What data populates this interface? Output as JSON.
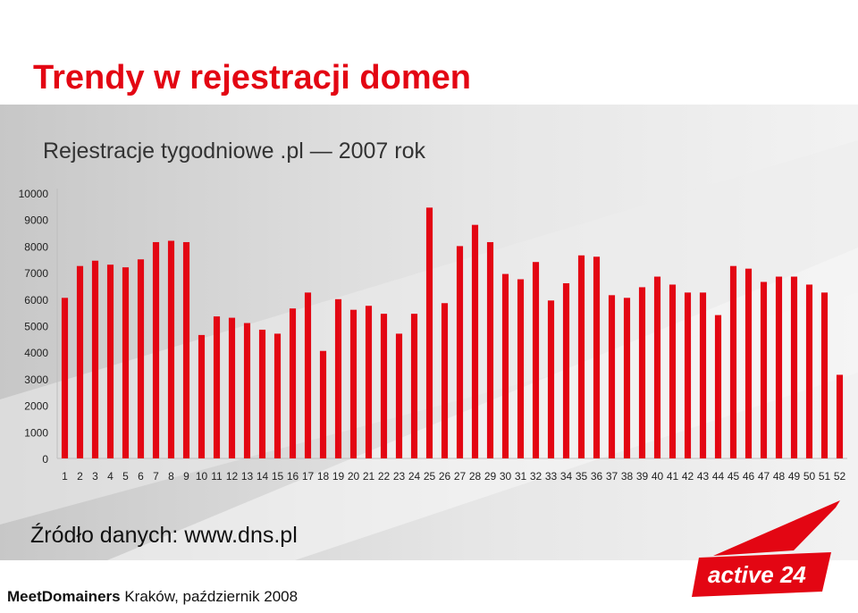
{
  "slide": {
    "title": "Trendy w rejestracji domen",
    "subtitle": "Rejestracje tygodniowe .pl — 2007 rok",
    "source": "Źródło danych: www.dns.pl",
    "footer_brand": "MeetDomainers",
    "footer_text": " Kraków, październik 2008",
    "logo_text": "active 24",
    "accent_color": "#e30613"
  },
  "chart_data": {
    "type": "bar",
    "title": "Rejestracje tygodniowe .pl — 2007 rok",
    "xlabel": "",
    "ylabel": "",
    "ylim": [
      0,
      10000
    ],
    "yticks": [
      0,
      1000,
      2000,
      3000,
      4000,
      5000,
      6000,
      7000,
      8000,
      9000,
      10000
    ],
    "grid": false,
    "legend": "none",
    "color": "#e30613",
    "categories": [
      "1",
      "2",
      "3",
      "4",
      "5",
      "6",
      "7",
      "8",
      "9",
      "10",
      "11",
      "12",
      "13",
      "14",
      "15",
      "16",
      "17",
      "18",
      "19",
      "20",
      "21",
      "22",
      "23",
      "24",
      "25",
      "26",
      "27",
      "28",
      "29",
      "30",
      "31",
      "32",
      "33",
      "34",
      "35",
      "36",
      "37",
      "38",
      "39",
      "40",
      "41",
      "42",
      "43",
      "44",
      "45",
      "46",
      "47",
      "48",
      "49",
      "50",
      "51",
      "52"
    ],
    "values": [
      6050,
      7250,
      7450,
      7300,
      7200,
      7500,
      8150,
      8200,
      8150,
      4650,
      5350,
      5300,
      5100,
      4850,
      4700,
      5650,
      6250,
      4050,
      6000,
      5600,
      5750,
      5450,
      4700,
      5450,
      9450,
      5850,
      8000,
      8800,
      8150,
      6950,
      6750,
      7400,
      5950,
      6600,
      7650,
      7600,
      6150,
      6050,
      6450,
      6850,
      6550,
      6250,
      6250,
      5400,
      7250,
      7150,
      6650,
      6850,
      6850,
      6550,
      6250,
      3150
    ]
  }
}
